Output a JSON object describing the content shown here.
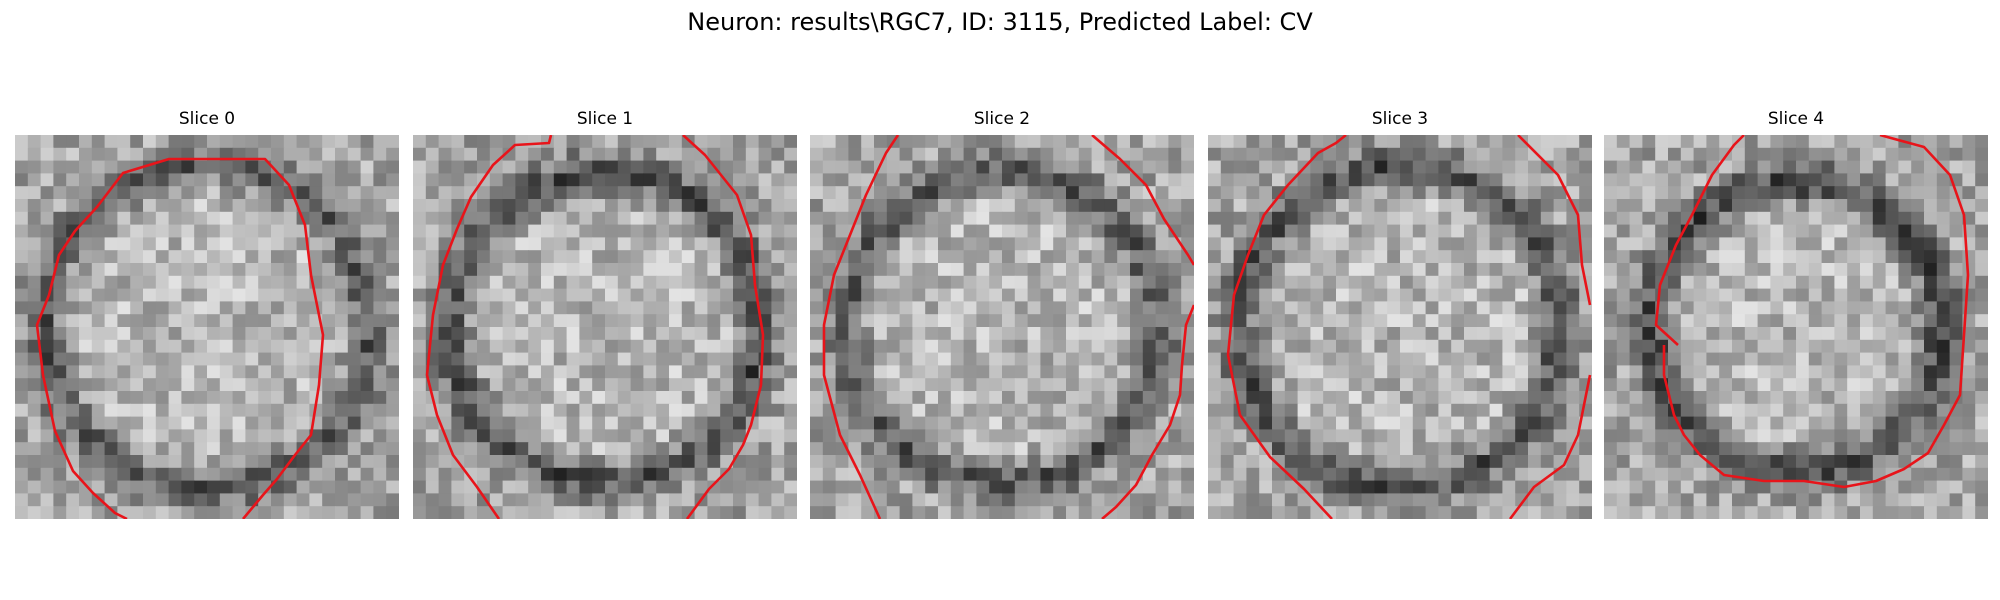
{
  "figure": {
    "suptitle": "Neuron: results\\RGC7, ID: 3115, Predicted Label: CV",
    "contour_color": "#e8141a",
    "grid_size": 30,
    "panels": [
      {
        "title": "Slice 0",
        "seed": 11,
        "ring": 0.56,
        "ring_strength": 0.9
      },
      {
        "title": "Slice 1",
        "seed": 23,
        "ring": 0.52,
        "ring_strength": 1.0
      },
      {
        "title": "Slice 2",
        "seed": 37,
        "ring": 0.53,
        "ring_strength": 0.9
      },
      {
        "title": "Slice 3",
        "seed": 41,
        "ring": 0.55,
        "ring_strength": 1.0
      },
      {
        "title": "Slice 4",
        "seed": 59,
        "ring": 0.47,
        "ring_strength": 1.1
      }
    ]
  }
}
